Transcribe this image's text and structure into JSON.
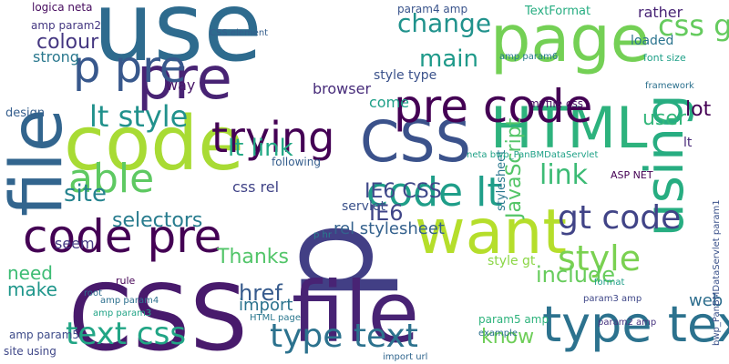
{
  "cloud": {
    "background": "#ffffff",
    "words": [
      {
        "text": "use",
        "color": "#2e6b8e"
      },
      {
        "text": "page",
        "color": "#74d055"
      },
      {
        "text": "pre",
        "color": "#482374"
      },
      {
        "text": "p",
        "color": "#423f85"
      },
      {
        "text": "file",
        "color": "#32658e"
      },
      {
        "text": "code",
        "color": "#a8db34"
      },
      {
        "text": "CSS",
        "color": "#481a6c"
      },
      {
        "text": "file",
        "color": "#482374"
      },
      {
        "text": "CSS",
        "color": "#3b528b"
      },
      {
        "text": "HTML",
        "color": "#2db27d"
      },
      {
        "text": "using",
        "color": "#27ad81"
      },
      {
        "text": "want",
        "color": "#b5de2b"
      },
      {
        "text": "code pre",
        "color": "#440154"
      },
      {
        "text": "pre code",
        "color": "#440154"
      },
      {
        "text": "p pre",
        "color": "#38588c"
      },
      {
        "text": "trying",
        "color": "#440154"
      },
      {
        "text": "able",
        "color": "#5ec962"
      },
      {
        "text": "text css",
        "color": "#21a585"
      },
      {
        "text": "type text",
        "color": "#2c728e"
      },
      {
        "text": "pre p",
        "color": "#3e4a89"
      },
      {
        "text": "code lt",
        "color": "#1f9e89"
      },
      {
        "text": "gt code",
        "color": "#414487"
      },
      {
        "text": "change",
        "color": "#20928c"
      },
      {
        "text": "lt style",
        "color": "#21918c"
      },
      {
        "text": "style",
        "color": "#7ad151"
      },
      {
        "text": "link",
        "color": "#3cbb75"
      },
      {
        "text": "main",
        "color": "#1f9a8a"
      },
      {
        "text": "site",
        "color": "#25838e"
      },
      {
        "text": "selectors",
        "color": "#287c8e"
      },
      {
        "text": "Thanks",
        "color": "#52c569"
      },
      {
        "text": "need",
        "color": "#3dbc74"
      },
      {
        "text": "make",
        "color": "#1f968b"
      },
      {
        "text": "colour",
        "color": "#453781"
      },
      {
        "text": "lt link",
        "color": "#22a884"
      },
      {
        "text": "css gt",
        "color": "#65cb5e"
      },
      {
        "text": "lot",
        "color": "#440154"
      },
      {
        "text": "user",
        "color": "#32b67a"
      },
      {
        "text": "IE6 CSS",
        "color": "#3f4889"
      },
      {
        "text": "IE6",
        "color": "#404588"
      },
      {
        "text": "include",
        "color": "#67cc5c"
      },
      {
        "text": "href",
        "color": "#375b8d"
      },
      {
        "text": "import",
        "color": "#2c738e"
      },
      {
        "text": "know",
        "color": "#6ece58"
      },
      {
        "text": "web",
        "color": "#2e6e8e"
      },
      {
        "text": "JavaScript",
        "color": "#54c568"
      },
      {
        "text": "style type",
        "color": "#3b528b"
      },
      {
        "text": "style gt",
        "color": "#8bd646"
      },
      {
        "text": "rel stylesheet",
        "color": "#34618d"
      },
      {
        "text": "css rel",
        "color": "#404387"
      },
      {
        "text": "browser",
        "color": "#472c7a"
      },
      {
        "text": "way",
        "color": "#481668"
      },
      {
        "text": "strong",
        "color": "#2a788e"
      },
      {
        "text": "design",
        "color": "#355e8d"
      },
      {
        "text": "seem",
        "color": "#443983"
      },
      {
        "text": "come",
        "color": "#1fa088"
      },
      {
        "text": "loaded",
        "color": "#2b748e"
      },
      {
        "text": "rather",
        "color": "#482475"
      },
      {
        "text": "TextFormat",
        "color": "#26ad81"
      },
      {
        "text": "CSS element",
        "color": "#355f8d"
      },
      {
        "text": "logica neta",
        "color": "#460b5e"
      },
      {
        "text": "amp param2",
        "color": "#453882"
      },
      {
        "text": "stylesheet",
        "color": "#2a778e"
      },
      {
        "text": "following",
        "color": "#355e8d"
      },
      {
        "text": "servlet",
        "color": "#3b528b"
      },
      {
        "text": "site using",
        "color": "#3f4788"
      },
      {
        "text": "HTML page",
        "color": "#2a778e"
      },
      {
        "text": "param5 amp",
        "color": "#2eb37c"
      },
      {
        "text": "param4 amp",
        "color": "#3a548c"
      },
      {
        "text": "ASP NET",
        "color": "#440154"
      },
      {
        "text": "myfile css",
        "color": "#471063"
      },
      {
        "text": "framework",
        "color": "#2c718e"
      },
      {
        "text": "font size",
        "color": "#1fa088"
      },
      {
        "text": "amp param5",
        "color": "#3e4c8a"
      },
      {
        "text": "amp param4",
        "color": "#2d708e"
      },
      {
        "text": "amp param3",
        "color": "#20a386"
      },
      {
        "text": "amp param6",
        "color": "#287c8e"
      },
      {
        "text": "param3 amp",
        "color": "#3f4788"
      },
      {
        "text": "param2 amp",
        "color": "#46337f"
      },
      {
        "text": "import url",
        "color": "#31668e"
      },
      {
        "text": "example",
        "color": "#2c728e"
      },
      {
        "text": "rule",
        "color": "#440154"
      },
      {
        "text": "root",
        "color": "#2e6e8e"
      },
      {
        "text": "format",
        "color": "#1f9e89"
      },
      {
        "text": "p hr",
        "color": "#277f8e"
      },
      {
        "text": "bwp_PanBMDataServlet param1",
        "color": "#3b528b"
      },
      {
        "text": "neta bwp_PanBMDataServlet",
        "color": "#1fa187"
      },
      {
        "text": "lt",
        "color": "#482878"
      }
    ]
  }
}
